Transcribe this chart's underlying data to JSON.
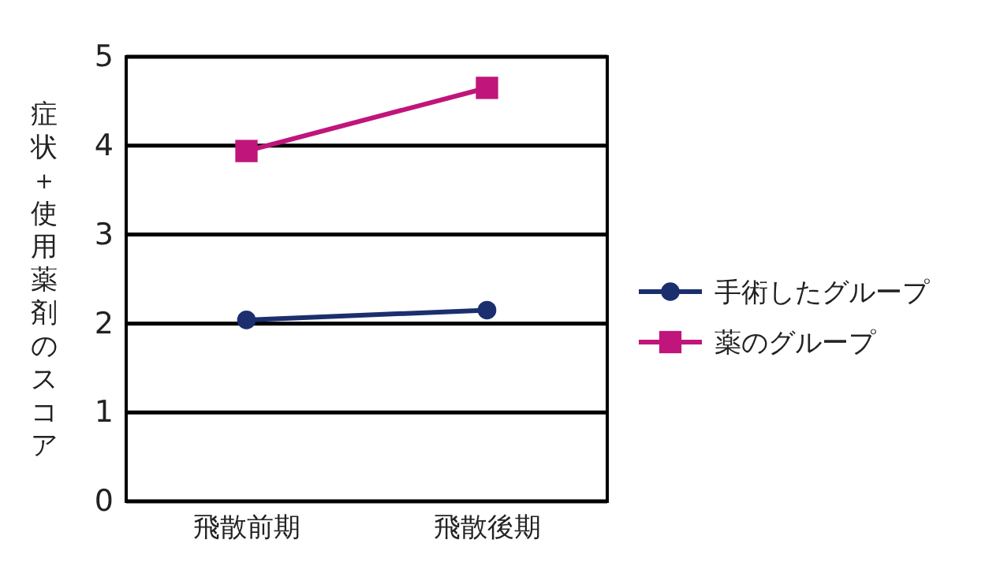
{
  "chart_data": {
    "type": "line",
    "ylabel": "症状＋使用薬剤のスコア",
    "categories": [
      "飛散前期",
      "飛散後期"
    ],
    "series": [
      {
        "name": "手術したグループ",
        "color": "#1b2f6e",
        "values": [
          2.04,
          2.15
        ],
        "marker": "circle"
      },
      {
        "name": "薬のグループ",
        "color": "#c0157a",
        "values": [
          3.94,
          4.65
        ],
        "marker": "square"
      }
    ],
    "ylim": [
      0,
      5
    ],
    "yticks": [
      0,
      1,
      2,
      3,
      4,
      5
    ],
    "grid": "y",
    "legend": "right",
    "line_style": "solid"
  }
}
